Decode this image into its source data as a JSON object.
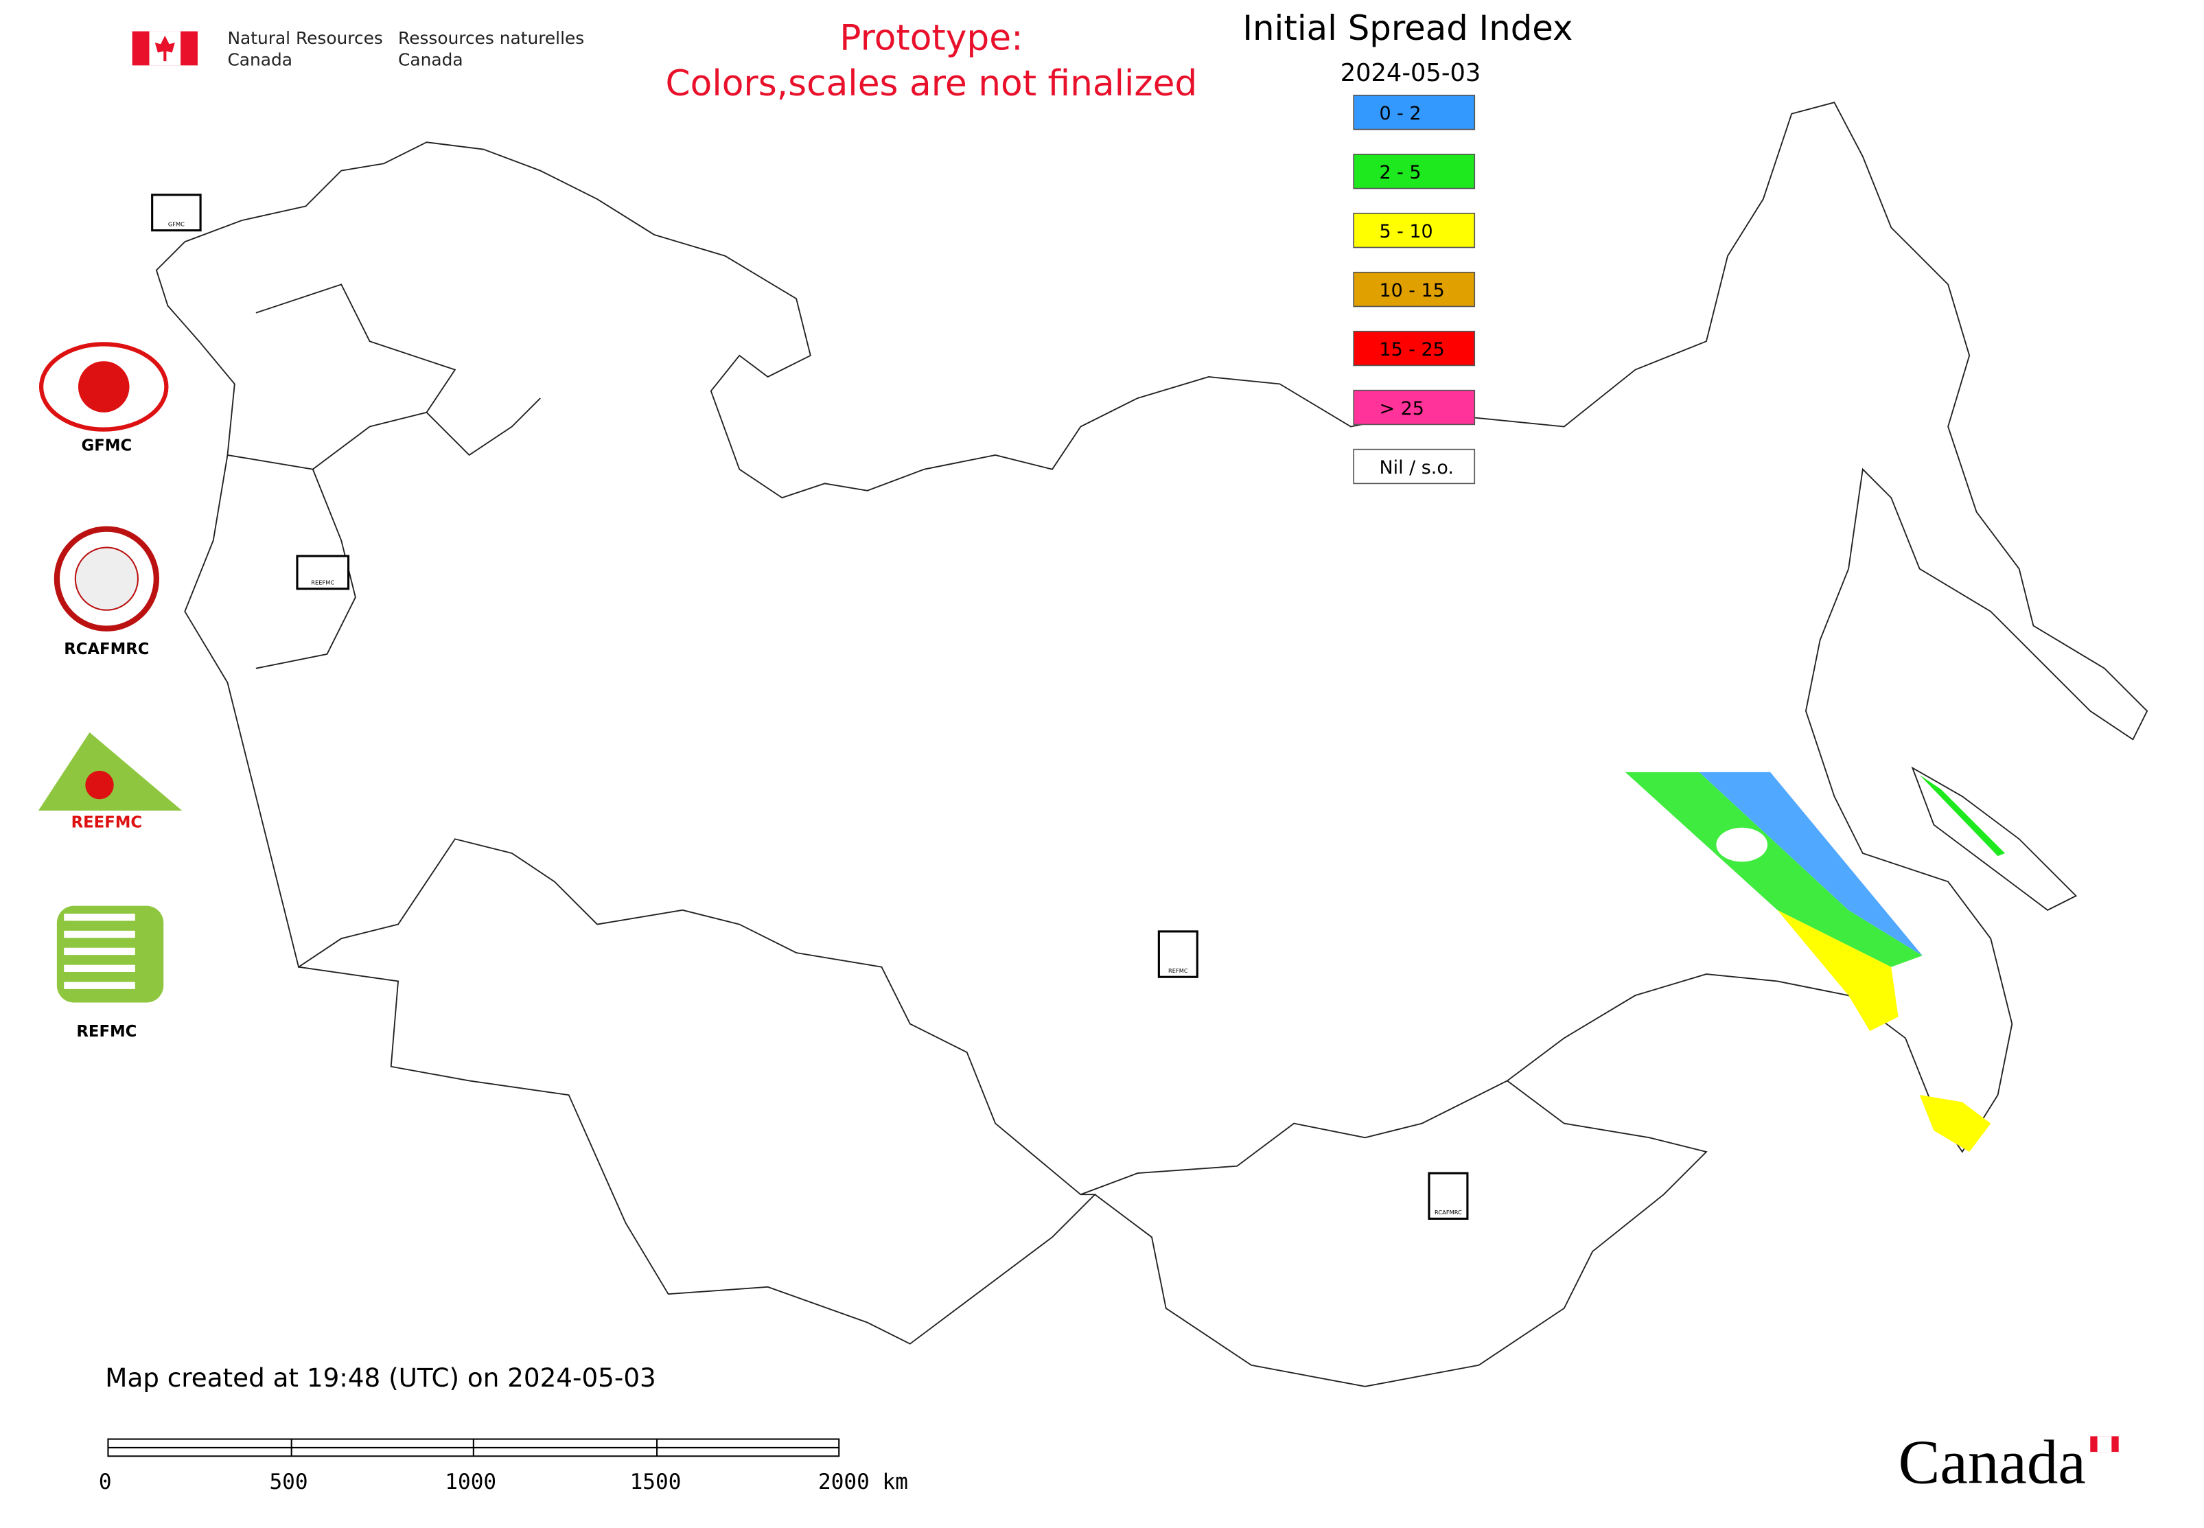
{
  "header": {
    "agency_en_1": "Natural Resources",
    "agency_en_2": "Canada",
    "agency_fr_1": "Ressources naturelles",
    "agency_fr_2": "Canada",
    "notice_1": "Prototype:",
    "notice_2": "Colors,scales are not finalized"
  },
  "legend": {
    "title": "Initial Spread Index",
    "date": "2024-05-03",
    "items": [
      {
        "label": "0 - 2",
        "color": "#3399ff"
      },
      {
        "label": "2 - 5",
        "color": "#1ee81e"
      },
      {
        "label": "5 - 10",
        "color": "#ffff00"
      },
      {
        "label": "10 - 15",
        "color": "#e0a000"
      },
      {
        "label": "15 - 25",
        "color": "#ff0000"
      },
      {
        "label": "> 25",
        "color": "#ff3399"
      },
      {
        "label": "Nil / s.o.",
        "color": "#ffffff"
      }
    ]
  },
  "logos": [
    "GFMC",
    "RCAFMRC",
    "REEFMC",
    "REFMC"
  ],
  "map_markers": [
    "GFMC",
    "REEFMC",
    "REFMC",
    "RCAFMRC"
  ],
  "footer": {
    "created": "Map created at 19:48 (UTC) on 2024-05-03",
    "scale_labels": [
      "0",
      "500",
      "1000",
      "1500",
      "2000 km"
    ],
    "wordmark": "Canada"
  }
}
